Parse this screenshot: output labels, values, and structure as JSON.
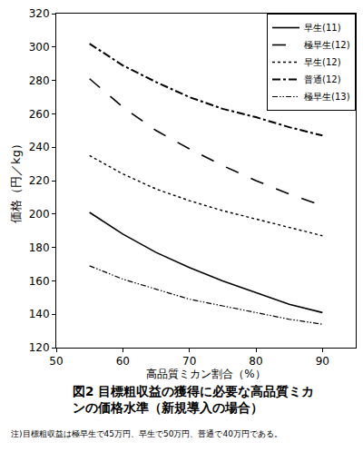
{
  "chart_data": {
    "type": "line",
    "title": "図2 目標粗収益の獲得に必要な高品質ミカンの価格水準（新規導入の場合）",
    "note": "注)目標粗収益は極早生で45万円、早生で50万円、普通で40万円である。",
    "x_label": "高品質ミカン割合（%）",
    "y_label": "価格（円／kg）",
    "x": [
      55,
      60,
      65,
      70,
      75,
      80,
      85,
      90
    ],
    "series": [
      {
        "name": "早生(11)",
        "color": "#000000",
        "line_style": "solid",
        "values": [
          201,
          188,
          177,
          168,
          160,
          153,
          146,
          141
        ]
      },
      {
        "name": "極早生(12)",
        "color": "#000000",
        "line_style": "longdash",
        "values": [
          281,
          264,
          250,
          239,
          229,
          220,
          212,
          205
        ]
      },
      {
        "name": "早生(12)",
        "color": "#000000",
        "line_style": "dot",
        "values": [
          235,
          224,
          215,
          208,
          202,
          197,
          192,
          187
        ]
      },
      {
        "name": "普通(12)",
        "color": "#000000",
        "line_style": "dashdot",
        "values": [
          302,
          289,
          279,
          270,
          263,
          258,
          252,
          247
        ]
      },
      {
        "name": "極早生(13)",
        "color": "#000000",
        "line_style": "dashdotdot",
        "values": [
          169,
          161,
          155,
          149,
          145,
          141,
          137,
          134
        ]
      }
    ],
    "xlim": [
      50,
      95
    ],
    "xticks": [
      50,
      60,
      70,
      80,
      90
    ],
    "ylim": [
      120,
      320
    ],
    "yticks": [
      120,
      140,
      160,
      180,
      200,
      220,
      240,
      260,
      280,
      300,
      320
    ],
    "grid": false,
    "legend": "top-right"
  }
}
